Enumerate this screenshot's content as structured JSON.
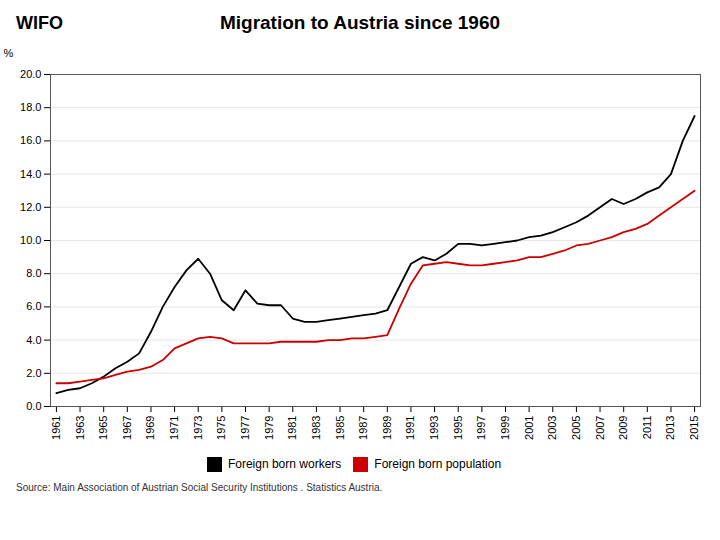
{
  "chart_data": {
    "type": "line",
    "title": "Migration to Austria since 1960",
    "ylabel": "%",
    "caption": "Source: Main Association of Austrian Social Security Institutions . Statistics Austria.",
    "annotations": [
      "WIFO"
    ],
    "x": [
      1961,
      1962,
      1963,
      1964,
      1965,
      1966,
      1967,
      1968,
      1969,
      1970,
      1971,
      1972,
      1973,
      1974,
      1975,
      1976,
      1977,
      1978,
      1979,
      1980,
      1981,
      1982,
      1983,
      1984,
      1985,
      1986,
      1987,
      1988,
      1989,
      1990,
      1991,
      1992,
      1993,
      1994,
      1995,
      1996,
      1997,
      1998,
      1999,
      2000,
      2001,
      2002,
      2003,
      2004,
      2005,
      2006,
      2007,
      2008,
      2009,
      2010,
      2011,
      2012,
      2013,
      2014,
      2015
    ],
    "series": [
      {
        "name": "Foreign born workers",
        "color": "#000000",
        "values": [
          0.8,
          1.0,
          1.1,
          1.4,
          1.8,
          2.3,
          2.7,
          3.2,
          4.5,
          6.0,
          7.2,
          8.2,
          8.9,
          8.0,
          6.4,
          5.8,
          7.0,
          6.2,
          6.1,
          6.1,
          5.3,
          5.1,
          5.1,
          5.2,
          5.3,
          5.4,
          5.5,
          5.6,
          5.8,
          7.2,
          8.6,
          9.0,
          8.8,
          9.2,
          9.8,
          9.8,
          9.7,
          9.8,
          9.9,
          10.0,
          10.2,
          10.3,
          10.5,
          10.8,
          11.1,
          11.5,
          12.0,
          12.5,
          12.2,
          12.5,
          12.9,
          13.2,
          14.0,
          16.0,
          17.5
        ]
      },
      {
        "name": "Foreign born population",
        "color": "#cc0000",
        "values": [
          1.4,
          1.4,
          1.5,
          1.6,
          1.7,
          1.9,
          2.1,
          2.2,
          2.4,
          2.8,
          3.5,
          3.8,
          4.1,
          4.2,
          4.1,
          3.8,
          3.8,
          3.8,
          3.8,
          3.9,
          3.9,
          3.9,
          3.9,
          4.0,
          4.0,
          4.1,
          4.1,
          4.2,
          4.3,
          5.9,
          7.4,
          8.5,
          8.6,
          8.7,
          8.6,
          8.5,
          8.5,
          8.6,
          8.7,
          8.8,
          9.0,
          9.0,
          9.2,
          9.4,
          9.7,
          9.8,
          10.0,
          10.2,
          10.5,
          10.7,
          11.0,
          11.5,
          12.0,
          12.5,
          13.0
        ]
      }
    ],
    "xlim": [
      1960.5,
      2015.5
    ],
    "xticks": [
      1961,
      1963,
      1965,
      1967,
      1969,
      1971,
      1973,
      1975,
      1977,
      1979,
      1981,
      1983,
      1985,
      1987,
      1989,
      1991,
      1993,
      1995,
      1997,
      1999,
      2001,
      2003,
      2005,
      2007,
      2009,
      2011,
      2013,
      2015
    ],
    "ylim": [
      0,
      20.0
    ],
    "yticks": [
      {
        "value": 0.0,
        "label": "0.0"
      },
      {
        "value": 2.0,
        "label": "2.0"
      },
      {
        "value": 4.0,
        "label": "4.0"
      },
      {
        "value": 6.0,
        "label": "6.0"
      },
      {
        "value": 8.0,
        "label": "8.0"
      },
      {
        "value": 10.0,
        "label": "10.0"
      },
      {
        "value": 12.0,
        "label": "12.0"
      },
      {
        "value": 14.0,
        "label": "14.0"
      },
      {
        "value": 16.0,
        "label": "16.0"
      },
      {
        "value": 18.0,
        "label": "18.0"
      },
      {
        "value": 20.0,
        "label": "20.0"
      }
    ],
    "grid": true
  }
}
